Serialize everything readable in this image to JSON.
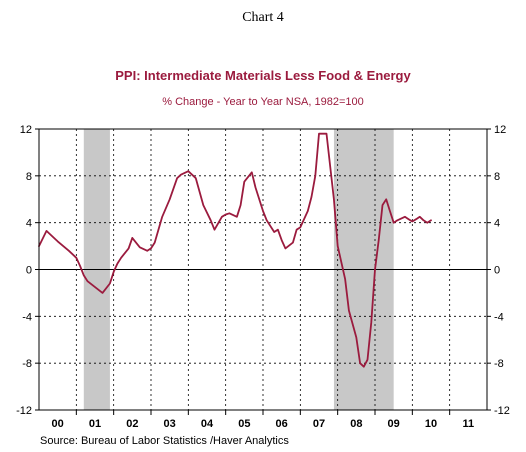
{
  "chart_number": "Chart 4",
  "source": "Source:  Bureau of Labor Statistics /Haver Analytics",
  "chart_data": {
    "type": "line",
    "title": "PPI: Intermediate Materials Less Food & Energy",
    "subtitle": "% Change - Year to Year     NSA, 1982=100",
    "xlabel": "",
    "ylabel": "",
    "x_range": [
      2000.0,
      2012.0
    ],
    "ylim": [
      -12,
      12
    ],
    "y_ticks": [
      12,
      8,
      4,
      0,
      -4,
      -8,
      -12
    ],
    "x_tick_labels": [
      "00",
      "01",
      "02",
      "03",
      "04",
      "05",
      "06",
      "07",
      "08",
      "09",
      "10",
      "11"
    ],
    "year_dividers": [
      2001,
      2002,
      2003,
      2004,
      2005,
      2006,
      2007,
      2008,
      2009,
      2010,
      2011
    ],
    "dashed_gridlines_y": [
      8,
      4,
      -4,
      -8
    ],
    "zero_line": 0,
    "recessions": [
      {
        "start": 2001.2,
        "end": 2001.9
      },
      {
        "start": 2007.9,
        "end": 2009.5
      }
    ],
    "colors": {
      "series": "#9b1b3e",
      "title": "#9b1b3e",
      "recession": "#c8c8c8"
    },
    "series": [
      {
        "x": [
          2000.0,
          2000.2,
          2000.3,
          2000.5,
          2000.8,
          2001.0,
          2001.1,
          2001.2,
          2001.3,
          2001.5,
          2001.7,
          2001.9,
          2002.0,
          2002.1,
          2002.2,
          2002.4,
          2002.5,
          2002.7,
          2002.9,
          2003.0,
          2003.1,
          2003.3,
          2003.5,
          2003.7,
          2003.8,
          2004.0,
          2004.2,
          2004.4,
          2004.6,
          2004.7,
          2004.9,
          2005.0,
          2005.1,
          2005.3,
          2005.4,
          2005.5,
          2005.7,
          2005.8,
          2006.0,
          2006.1,
          2006.3,
          2006.4,
          2006.5,
          2006.6,
          2006.8,
          2006.9,
          2007.0,
          2007.2,
          2007.3,
          2007.4,
          2007.5,
          2007.7,
          2007.9,
          2008.0,
          2008.2,
          2008.3,
          2008.5,
          2008.6,
          2008.7,
          2008.8,
          2008.9,
          2009.0,
          2009.1,
          2009.2,
          2009.3,
          2009.4,
          2009.5,
          2009.6,
          2009.8,
          2009.9,
          2010.0,
          2010.1,
          2010.2,
          2010.3,
          2010.4,
          2010.5
        ],
        "values": [
          2.0,
          3.3,
          3.0,
          2.4,
          1.6,
          1.0,
          0.3,
          -0.5,
          -1.0,
          -1.5,
          -2.0,
          -1.2,
          -0.2,
          0.5,
          1.0,
          1.8,
          2.7,
          1.9,
          1.6,
          1.8,
          2.3,
          4.5,
          6.0,
          7.8,
          8.1,
          8.4,
          7.8,
          5.5,
          4.2,
          3.4,
          4.5,
          4.7,
          4.8,
          4.5,
          5.5,
          7.5,
          8.3,
          7.0,
          5.0,
          4.2,
          3.2,
          3.4,
          2.5,
          1.8,
          2.3,
          3.4,
          3.6,
          5.0,
          6.2,
          8.0,
          11.6,
          11.6,
          6.0,
          2.0,
          -0.8,
          -3.5,
          -5.8,
          -8.0,
          -8.3,
          -7.7,
          -4.5,
          0.0,
          2.5,
          5.5,
          6.0,
          5.0,
          4.0,
          4.2,
          4.5,
          4.3,
          4.1,
          4.3,
          4.5,
          4.2,
          4.0,
          4.2
        ]
      }
    ]
  }
}
